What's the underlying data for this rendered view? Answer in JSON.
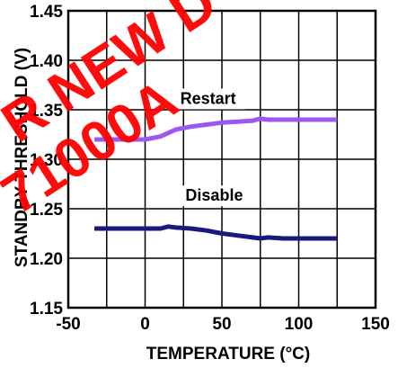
{
  "chart_data": {
    "type": "line",
    "xlabel": "TEMPERATURE (°C)",
    "ylabel": "STANDBY THRESHOLD (V)",
    "xlim": [
      -50,
      150
    ],
    "ylim": [
      1.15,
      1.45
    ],
    "x_ticks": [
      "-50",
      "0",
      "50",
      "100",
      "150"
    ],
    "y_ticks": [
      "1.15",
      "1.20",
      "1.25",
      "1.30",
      "1.35",
      "1.40",
      "1.45"
    ],
    "grid": true,
    "series": [
      {
        "name": "Restart",
        "color": "#9b59f0",
        "x": [
          -33,
          -20,
          -10,
          0,
          10,
          20,
          30,
          40,
          50,
          60,
          70,
          75,
          80,
          90,
          100,
          110,
          125
        ],
        "y": [
          1.32,
          1.32,
          1.32,
          1.32,
          1.323,
          1.33,
          1.333,
          1.335,
          1.337,
          1.338,
          1.339,
          1.341,
          1.34,
          1.34,
          1.34,
          1.34,
          1.34
        ]
      },
      {
        "name": "Disable",
        "color": "#1a1a7a",
        "x": [
          -33,
          -20,
          -10,
          0,
          10,
          15,
          20,
          30,
          40,
          50,
          60,
          70,
          75,
          80,
          90,
          100,
          110,
          125
        ],
        "y": [
          1.23,
          1.23,
          1.23,
          1.23,
          1.23,
          1.232,
          1.231,
          1.23,
          1.228,
          1.225,
          1.223,
          1.221,
          1.22,
          1.221,
          1.22,
          1.22,
          1.22,
          1.22
        ]
      }
    ],
    "annotations": [
      {
        "text": "Restart",
        "x": 41,
        "y": 1.356
      },
      {
        "text": "Disable",
        "x": 45,
        "y": 1.258
      }
    ]
  },
  "watermark": {
    "line1": "R NEW D",
    "line2": "71000A",
    "color": "#ff0000"
  }
}
